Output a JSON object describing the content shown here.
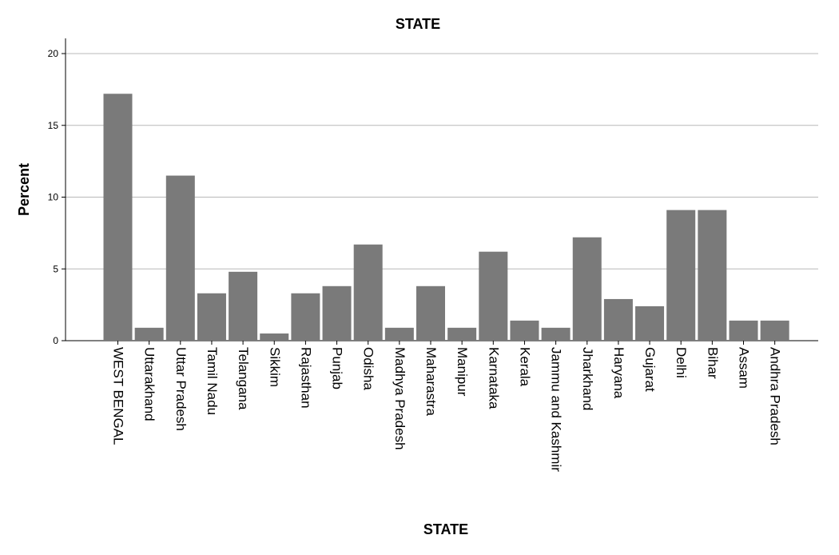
{
  "chart_data": {
    "type": "bar",
    "title": "STATE",
    "xlabel": "STATE",
    "ylabel": "Percent",
    "ylim": [
      0,
      20
    ],
    "yticks": [
      0,
      5,
      10,
      15,
      20
    ],
    "grid": true,
    "bar_color": "#7a7a7a",
    "categories": [
      "WEST BENGAL",
      "Uttarakhand",
      "Uttar Pradesh",
      "Tamil Nadu",
      "Telangana",
      "Sikkim",
      "Rajasthan",
      "Punjab",
      "Odisha",
      "Madhya Pradesh",
      "Maharastra",
      "Manipur",
      "Karnataka",
      "Kerala",
      "Jammu and Kashmir",
      "Jharkhand",
      "Haryana",
      "Gujarat",
      "Delhi",
      "Bihar",
      "Assam",
      "Andhra Pradesh"
    ],
    "values": [
      17.2,
      0.9,
      11.5,
      3.3,
      4.8,
      0.5,
      3.3,
      3.8,
      6.7,
      0.9,
      3.8,
      0.9,
      6.2,
      1.4,
      0.9,
      7.2,
      2.9,
      2.4,
      9.1,
      9.1,
      1.4,
      1.4
    ]
  }
}
